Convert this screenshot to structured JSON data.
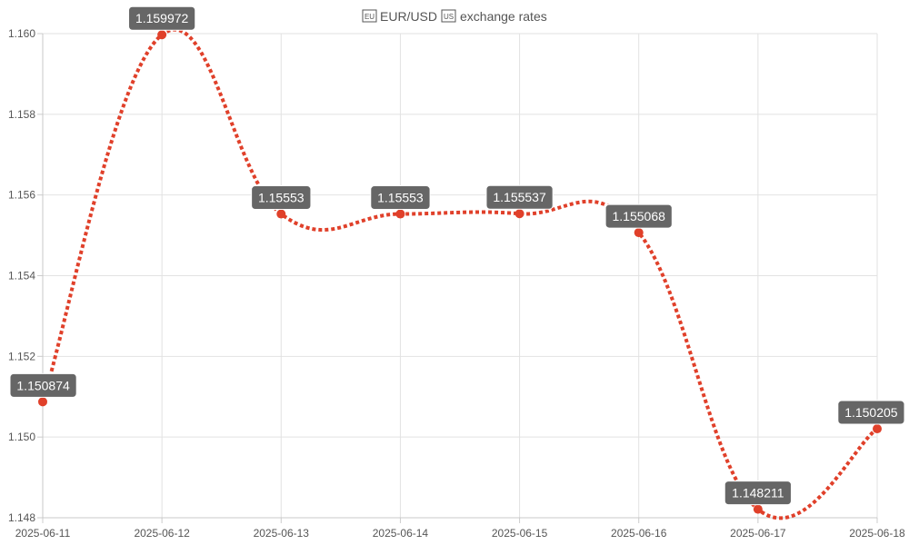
{
  "chart_data": {
    "type": "line",
    "title": "🇪🇺 EUR/USD 🇺🇸 exchange rates",
    "title_text": "EUR/USD",
    "title_suffix": "exchange rates",
    "categories": [
      "2025-06-11",
      "2025-06-12",
      "2025-06-13",
      "2025-06-14",
      "2025-06-15",
      "2025-06-16",
      "2025-06-17",
      "2025-06-18"
    ],
    "values": [
      1.150874,
      1.159972,
      1.15553,
      1.15553,
      1.155537,
      1.155068,
      1.148211,
      1.150205
    ],
    "value_labels": [
      "1.150874",
      "1.159972",
      "1.15553",
      "1.15553",
      "1.155537",
      "1.155068",
      "1.148211",
      "1.150205"
    ],
    "ylim": [
      1.148,
      1.16
    ],
    "yticks": [
      "1.148",
      "1.150",
      "1.152",
      "1.154",
      "1.156",
      "1.158",
      "1.160"
    ],
    "xlabel": "",
    "ylabel": "",
    "grid": true,
    "legend": "none",
    "line_style": "dotted",
    "line_color": "#e0402a",
    "label_bg_color": "#666666",
    "label_text_color": "#ffffff"
  }
}
